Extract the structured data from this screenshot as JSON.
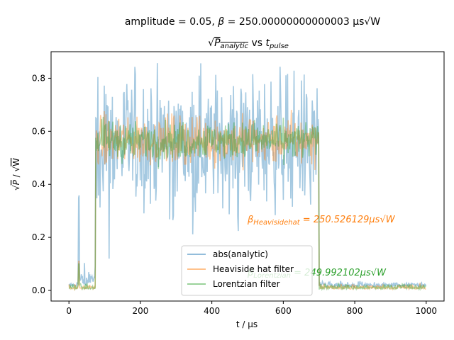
{
  "chart_data": {
    "type": "line",
    "title_line1": "amplitude = 0.05, β = 250.00000000000003 μs√W",
    "title_line2": "√P_analytic vs t_pulse",
    "xlabel": "t / μs",
    "ylabel": "√P / √W",
    "xlim": [
      -50,
      1050
    ],
    "ylim": [
      -0.04,
      0.9
    ],
    "xticks": [
      0,
      200,
      400,
      600,
      800,
      1000
    ],
    "yticks": [
      0.0,
      0.2,
      0.4,
      0.6,
      0.8
    ],
    "xtick_labels": [
      "0",
      "200",
      "400",
      "600",
      "800",
      "1000"
    ],
    "ytick_labels": [
      "0.0",
      "0.2",
      "0.4",
      "0.6",
      "0.8"
    ],
    "pulse": {
      "start": 75,
      "end": 700,
      "spike_at": 28
    },
    "series": [
      {
        "name": "abs(analytic)",
        "color": "#1f77b4",
        "opacity": 0.4,
        "baseline": 0.015,
        "mean": 0.56,
        "noise": 0.12,
        "spike": 0.35
      },
      {
        "name": "Heaviside hat filter",
        "color": "#ff7f0e",
        "opacity": 0.4,
        "baseline": 0.005,
        "mean": 0.565,
        "noise": 0.045,
        "spike": 0.11
      },
      {
        "name": "Lorentzian filter",
        "color": "#2ca02c",
        "opacity": 0.4,
        "baseline": 0.005,
        "mean": 0.565,
        "noise": 0.035,
        "spike": 0.1
      }
    ],
    "annotations": [
      {
        "text": "β_Heavisidehat = 250.526129μs√W",
        "color": "#ff7f0e",
        "x": 500,
        "y": 0.27
      },
      {
        "text": "β_Lorentzian = 249.992102μs√W",
        "color": "#2ca02c",
        "x": 500,
        "y": 0.07
      }
    ],
    "legend": {
      "position": "lower-center"
    }
  }
}
